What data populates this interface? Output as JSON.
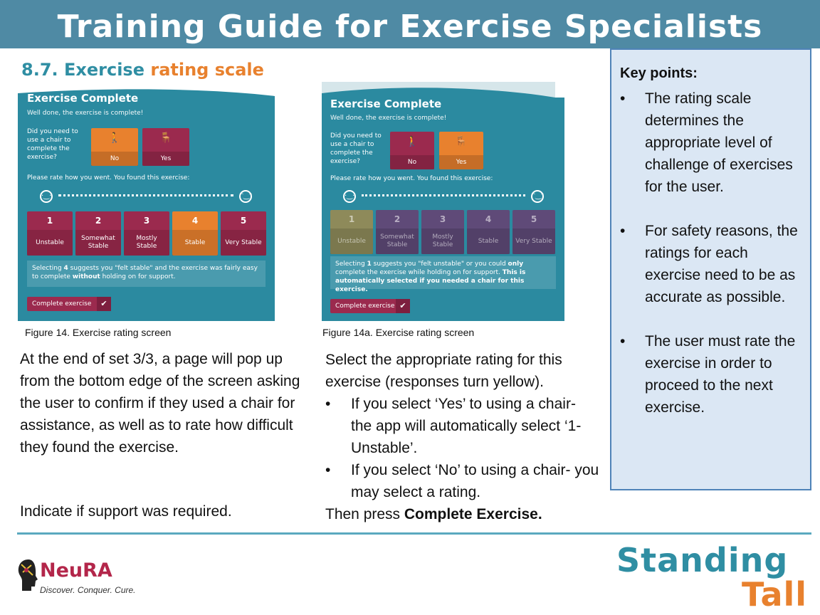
{
  "header": {
    "title": "Training Guide for Exercise Specialists"
  },
  "section": {
    "number_title": "8.7. Exercise",
    "accent": "rating scale"
  },
  "colors": {
    "header": "#4f8aa4",
    "teal": "#2f8ea3",
    "orange": "#e8812e",
    "maroon": "#9b2a4e",
    "screen_bg": "#2b8aa0"
  },
  "screen1": {
    "title": "Exercise Complete",
    "subtitle": "Well done, the exercise is complete!",
    "chair_question": "Did you need to use a chair to complete the exercise?",
    "chair_no": "No",
    "chair_yes": "Yes",
    "rate_question": "Please rate how you went. You found this exercise:",
    "ratings": [
      {
        "num": "1",
        "label": "Unstable"
      },
      {
        "num": "2",
        "label": "Somewhat Stable"
      },
      {
        "num": "3",
        "label": "Mostly Stable"
      },
      {
        "num": "4",
        "label": "Stable"
      },
      {
        "num": "5",
        "label": "Very Stable"
      }
    ],
    "selected_rating": 4,
    "info_pre": "Selecting ",
    "info_num": "4",
    "info_mid": " suggests you \"felt stable\" and the exercise was fairly easy to complete ",
    "info_bold": "without",
    "info_post": " holding on for support.",
    "complete_btn": "Complete exercise",
    "tick": "✔"
  },
  "screen2": {
    "title": "Exercise Complete",
    "subtitle": "Well done, the exercise is complete!",
    "chair_question": "Did you need to use a chair to complete the exercise?",
    "chair_no": "No",
    "chair_yes": "Yes",
    "rate_question": "Please rate how you went. You found this exercise:",
    "ratings": [
      {
        "num": "1",
        "label": "Unstable"
      },
      {
        "num": "2",
        "label": "Somewhat Stable"
      },
      {
        "num": "3",
        "label": "Mostly Stable"
      },
      {
        "num": "4",
        "label": "Stable"
      },
      {
        "num": "5",
        "label": "Very Stable"
      }
    ],
    "selected_rating": 1,
    "info_pre": "Selecting ",
    "info_num": "1",
    "info_mid": " suggests you \"felt unstable\" or you could ",
    "info_bold": "only",
    "info_mid2": " complete the exercise while holding on for support. ",
    "info_bold2": "This is automatically selected if you needed a chair for this exercise.",
    "complete_btn": "Complete exercise",
    "tick": "✔"
  },
  "captions": {
    "fig14": "Figure 14. Exercise rating screen",
    "fig14a": "Figure 14a. Exercise rating screen"
  },
  "left_text": {
    "para1": "At the end of set 3/3, a page will pop up from the bottom edge of the screen asking the user to confirm if they used a chair for assistance, as well as to rate how difficult they found the exercise.",
    "para2": "Indicate if support was required."
  },
  "middle_text": {
    "intro": "Select the appropriate rating for this exercise (responses turn yellow).",
    "bullet1": "If you select ‘Yes’ to using a chair- the app will automatically select ‘1-Unstable’.",
    "bullet2": "If you select ‘No’ to using a chair- you may select a rating.",
    "outro_pre": "Then press ",
    "outro_bold": "Complete Exercise."
  },
  "key_points": {
    "title": "Key points:",
    "items": [
      "The rating scale determines the appropriate level of challenge of exercises for the user.",
      "For safety reasons, the ratings for each exercise need to be as accurate as possible.",
      "The user must rate the exercise in order to proceed to the next exercise."
    ]
  },
  "logos": {
    "neura_name": "NeuRA",
    "neura_tag": "Discover. Conquer. Cure.",
    "standing": "Standing",
    "tall": "Tall"
  },
  "icons": {
    "neutral_face": "neutral-face-icon",
    "happy_face": "happy-face-icon",
    "chair": "chair-icon",
    "person": "person-icon",
    "check": "check-icon"
  }
}
